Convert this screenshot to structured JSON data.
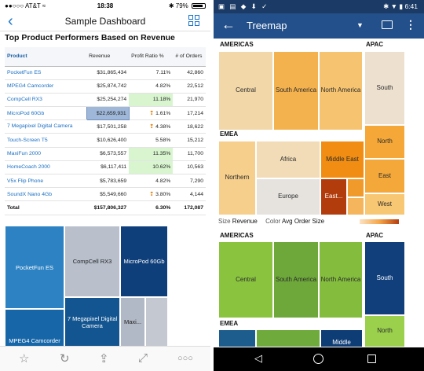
{
  "ios": {
    "status": {
      "carrier": "●●○○○ AT&T ≈",
      "time": "18:38",
      "battery": "79%"
    },
    "nav": {
      "title": "Sample Dashboard"
    },
    "report_title": "Top Product Performers Based on Revenue",
    "table": {
      "headers": [
        "Product",
        "Revenue",
        "Profit Ratio %",
        "# of Orders"
      ],
      "rows": [
        {
          "product": "PocketFun ES",
          "revenue": "$31,865,434",
          "profit": "7.11%",
          "orders": "42,860"
        },
        {
          "product": "MPEG4 Camcorder",
          "revenue": "$25,874,742",
          "profit": "4.82%",
          "orders": "22,512"
        },
        {
          "product": "CompCell RX3",
          "revenue": "$25,254,274",
          "profit": "11.18%",
          "orders": "21,970"
        },
        {
          "product": "MicroPod 60Gb",
          "revenue": "$22,659,931",
          "profit": "1.61%",
          "orders": "17,214"
        },
        {
          "product": "7 Megapixel Digital Camera",
          "revenue": "$17,501,258",
          "profit": "4.38%",
          "orders": "18,622"
        },
        {
          "product": "Touch-Screen T5",
          "revenue": "$10,626,400",
          "profit": "5.58%",
          "orders": "15,212"
        },
        {
          "product": "MaxiFun 2000",
          "revenue": "$6,573,557",
          "profit": "11.35%",
          "orders": "11,700"
        },
        {
          "product": "HomeCoach 2000",
          "revenue": "$6,117,411",
          "profit": "10.62%",
          "orders": "10,563"
        },
        {
          "product": "V5x Flip Phone",
          "revenue": "$5,783,659",
          "profit": "4.82%",
          "orders": "7,290"
        },
        {
          "product": "SoundX Nano 4Gb",
          "revenue": "$5,549,660",
          "profit": "3.80%",
          "orders": "4,144"
        }
      ],
      "total": {
        "label": "Total",
        "revenue": "$157,806,327",
        "profit": "6.30%",
        "orders": "172,087"
      }
    },
    "treemap": {
      "cells": [
        "PocketFun ES",
        "CompCell RX3",
        "MicroPod 60Gb",
        "MPEG4 Camcorder",
        "7 Megapixel Digital Camera",
        "Maxi..."
      ]
    }
  },
  "android": {
    "status": {
      "time": "6:41"
    },
    "appbar": {
      "title": "Treemap"
    },
    "size_by": {
      "label": "Size",
      "value": "Revenue"
    },
    "color_by": {
      "label": "Color",
      "value": "Avg Order Size"
    },
    "top_map": {
      "groups": [
        "AMERICAS",
        "APAC",
        "EMEA"
      ],
      "cells": [
        "Central",
        "South America",
        "North America",
        "South",
        "North",
        "East",
        "West",
        "Northern",
        "Africa",
        "Middle East",
        "Europe",
        "East..."
      ]
    },
    "bottom_map": {
      "groups": [
        "AMERICAS",
        "APAC",
        "EMEA"
      ],
      "cells": [
        "Central",
        "South America",
        "North America",
        "South",
        "North",
        "Middle"
      ]
    }
  }
}
